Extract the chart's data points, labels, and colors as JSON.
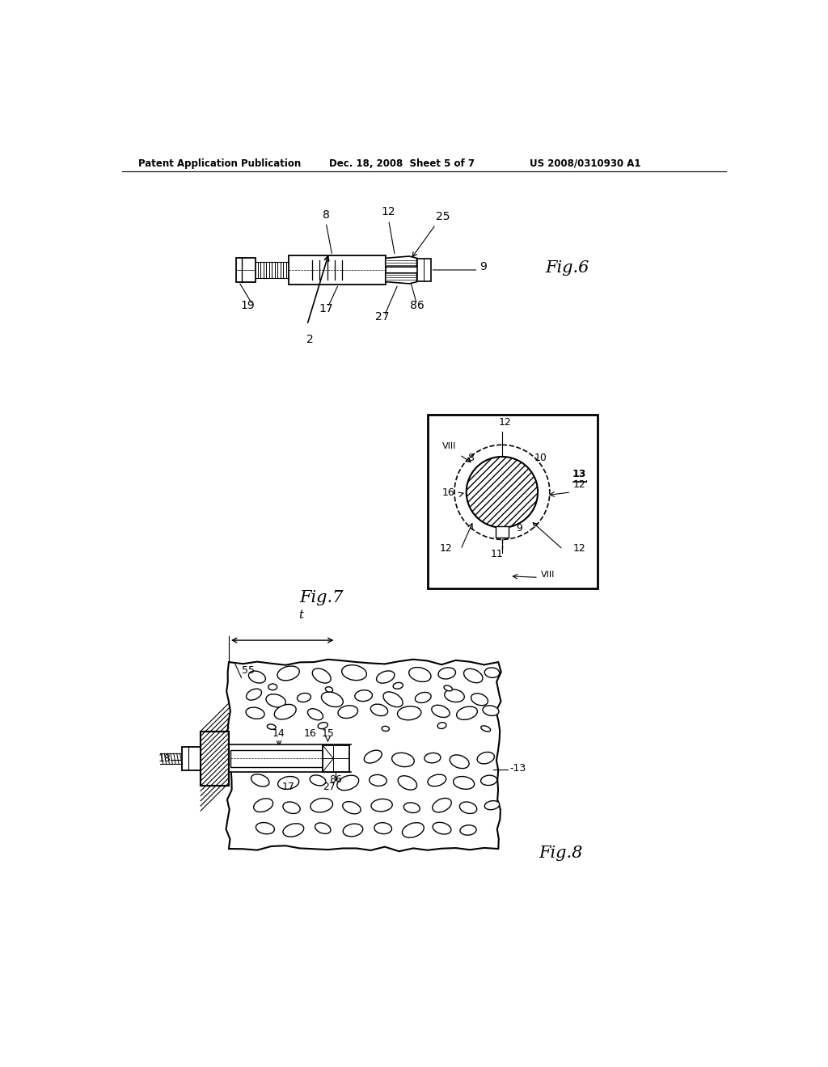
{
  "background_color": "#ffffff",
  "header_left": "Patent Application Publication",
  "header_mid": "Dec. 18, 2008  Sheet 5 of 7",
  "header_right": "US 2008/0310930 A1",
  "fig6_label": "Fig.6",
  "fig7_label": "Fig.7",
  "fig8_label": "Fig.8",
  "lc": "#000000",
  "tc": "#000000"
}
